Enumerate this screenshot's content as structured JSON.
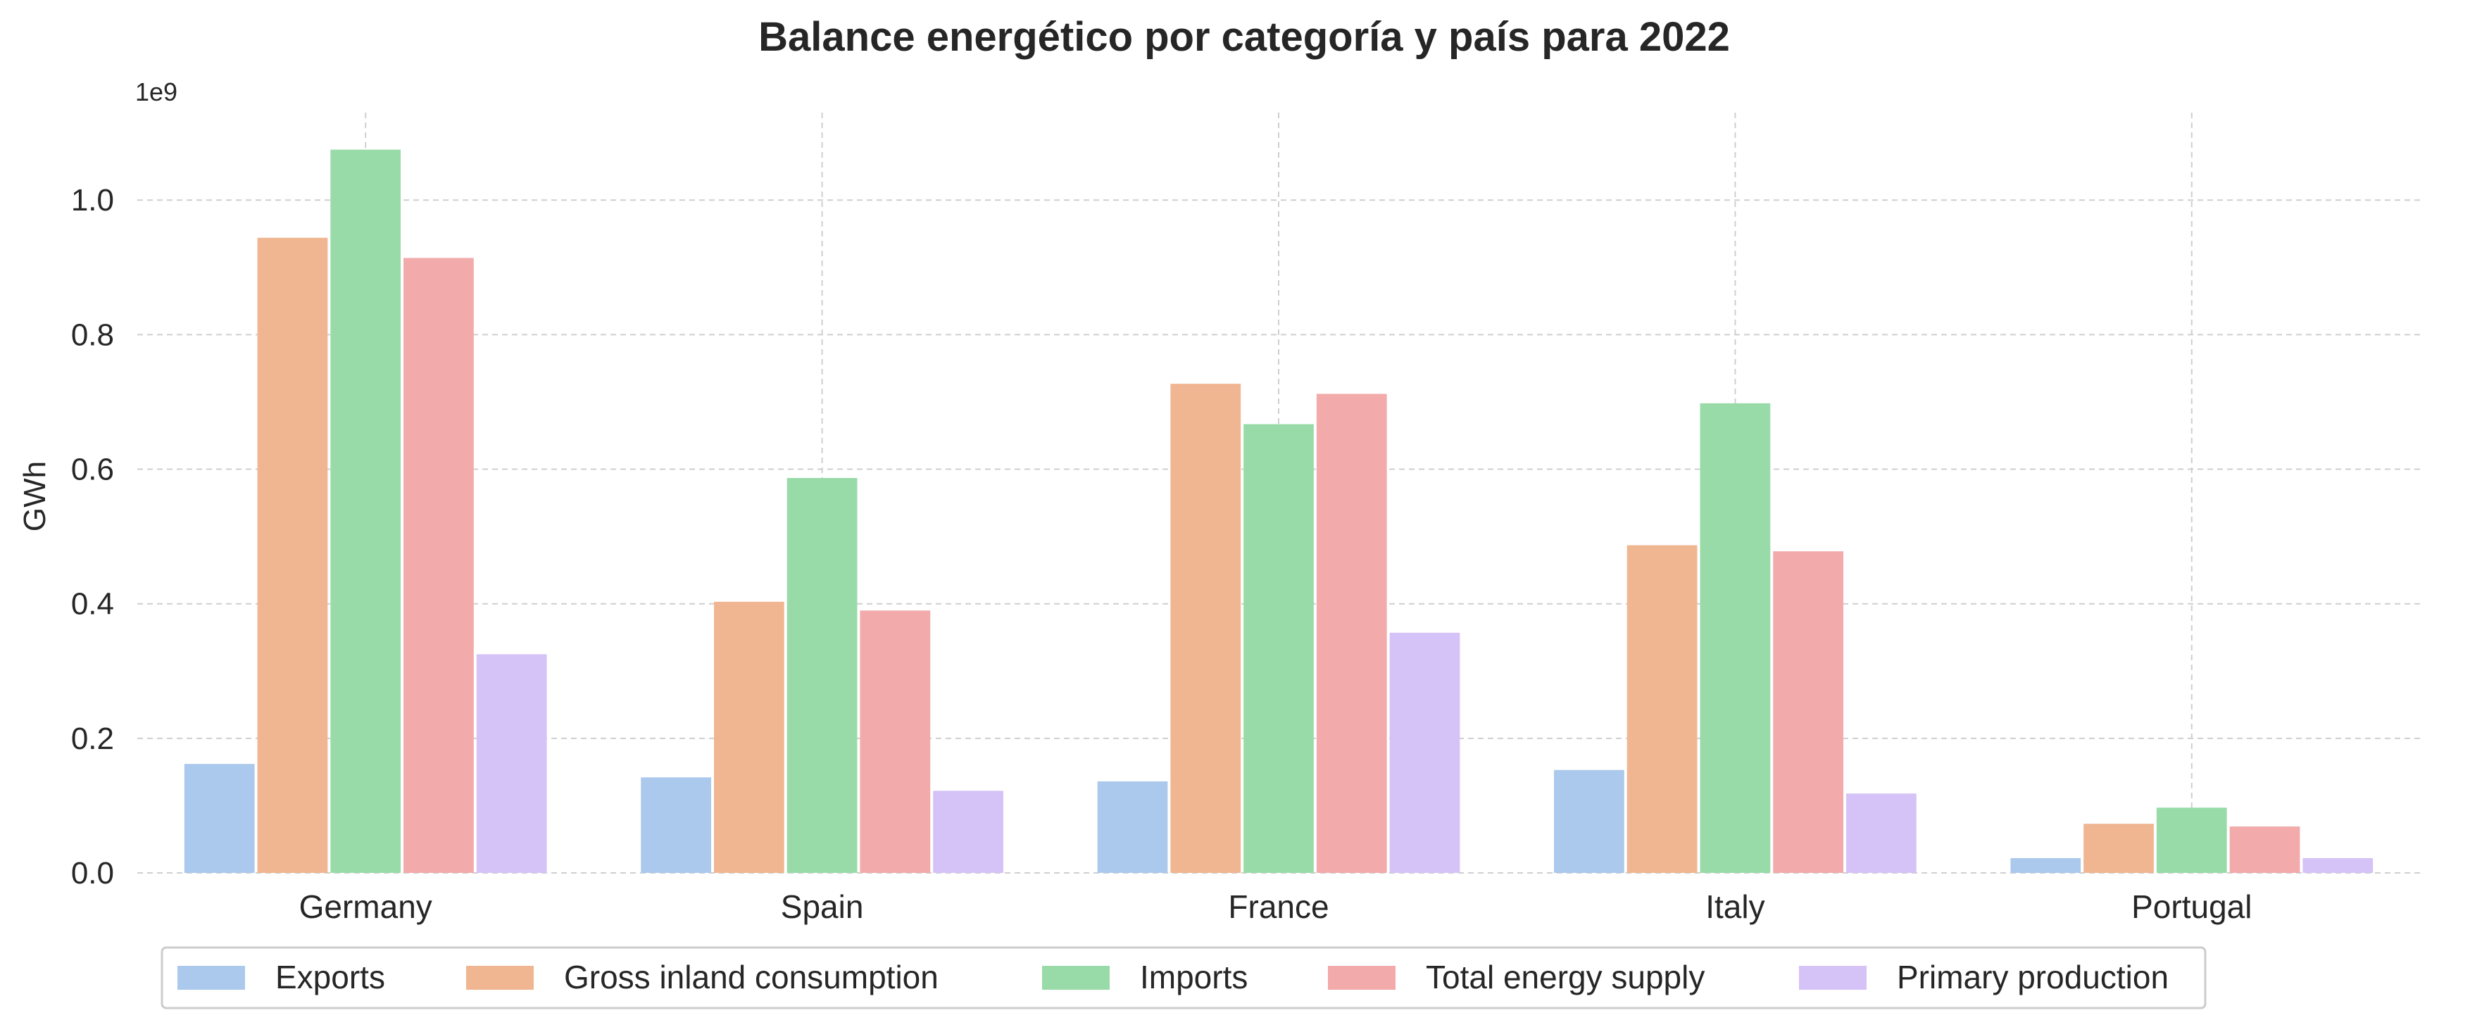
{
  "chart_data": {
    "type": "bar",
    "title": "Balance energético por categoría y país para 2022",
    "xlabel": "",
    "ylabel": "GWh",
    "offset_label": "1e9",
    "scale": 1000000000,
    "categories": [
      "Germany",
      "Spain",
      "France",
      "Italy",
      "Portugal"
    ],
    "ylim": [
      0,
      1130000000
    ],
    "yticks": [
      0,
      200000000,
      400000000,
      600000000,
      800000000,
      1000000000
    ],
    "ytick_labels": [
      "0.0",
      "0.2",
      "0.4",
      "0.6",
      "0.8",
      "1.0"
    ],
    "grid": true,
    "legend_position": "bottom",
    "series": [
      {
        "name": "Exports",
        "color": "#abc9ec",
        "values": [
          162000000,
          142000000,
          136000000,
          153000000,
          22000000
        ]
      },
      {
        "name": "Gross inland consumption",
        "color": "#efb691",
        "values": [
          944000000,
          403000000,
          727000000,
          487000000,
          73000000
        ]
      },
      {
        "name": "Imports",
        "color": "#99dba8",
        "values": [
          1075000000,
          587000000,
          667000000,
          698000000,
          97000000
        ]
      },
      {
        "name": "Total energy supply",
        "color": "#f2aaaa",
        "values": [
          914000000,
          390000000,
          712000000,
          478000000,
          69000000
        ]
      },
      {
        "name": "Primary production",
        "color": "#d5c2f6",
        "values": [
          325000000,
          122000000,
          357000000,
          118000000,
          22000000
        ]
      }
    ]
  }
}
